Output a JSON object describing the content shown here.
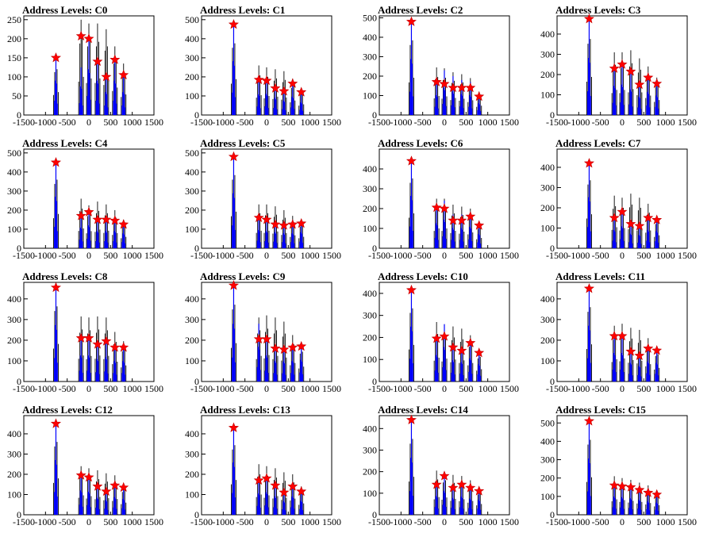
{
  "x_ticks": [
    -1500,
    -1000,
    -500,
    0,
    500,
    1000,
    1500
  ],
  "x_range": [
    -1500,
    1500
  ],
  "star_color": "#ff0000",
  "hist_color": "#0000ff",
  "chart_data": [
    {
      "type": "bar",
      "title": "Address Levels: C0",
      "ylim": [
        0,
        260
      ],
      "yticks": [
        0,
        50,
        100,
        150,
        200,
        250
      ],
      "peaks_x": [
        -760,
        -180,
        0,
        200,
        400,
        600,
        800
      ],
      "blue": [
        150,
        125,
        200,
        150,
        100,
        150,
        100
      ],
      "black": [
        150,
        250,
        240,
        240,
        225,
        180,
        135
      ],
      "stars": [
        150,
        207,
        200,
        140,
        100,
        145,
        105
      ]
    },
    {
      "type": "bar",
      "title": "Address Levels: C1",
      "ylim": [
        0,
        520
      ],
      "yticks": [
        0,
        100,
        200,
        300,
        400,
        500
      ],
      "peaks_x": [
        -760,
        -180,
        0,
        200,
        400,
        600,
        800
      ],
      "blue": [
        470,
        180,
        185,
        150,
        125,
        160,
        110
      ],
      "black": [
        470,
        260,
        250,
        240,
        230,
        190,
        140
      ],
      "stars": [
        475,
        185,
        180,
        140,
        125,
        165,
        120
      ]
    },
    {
      "type": "bar",
      "title": "Address Levels: C2",
      "ylim": [
        0,
        510
      ],
      "yticks": [
        0,
        100,
        200,
        300,
        400,
        500
      ],
      "peaks_x": [
        -760,
        -180,
        0,
        200,
        400,
        600,
        800
      ],
      "blue": [
        480,
        170,
        230,
        200,
        180,
        170,
        100
      ],
      "black": [
        480,
        245,
        240,
        220,
        210,
        190,
        120
      ],
      "stars": [
        480,
        170,
        160,
        140,
        140,
        140,
        95
      ]
    },
    {
      "type": "bar",
      "title": "Address Levels: C3",
      "ylim": [
        0,
        490
      ],
      "yticks": [
        0,
        100,
        200,
        300,
        400
      ],
      "peaks_x": [
        -760,
        -180,
        0,
        200,
        400,
        600,
        800
      ],
      "blue": [
        470,
        240,
        250,
        210,
        150,
        190,
        160
      ],
      "black": [
        470,
        310,
        310,
        320,
        280,
        240,
        185
      ],
      "stars": [
        475,
        230,
        250,
        215,
        150,
        185,
        155
      ]
    },
    {
      "type": "bar",
      "title": "Address Levels: C4",
      "ylim": [
        0,
        520
      ],
      "yticks": [
        0,
        100,
        200,
        300,
        400,
        500
      ],
      "peaks_x": [
        -760,
        -180,
        0,
        200,
        400,
        600,
        800
      ],
      "blue": [
        450,
        180,
        200,
        150,
        150,
        150,
        130
      ],
      "black": [
        450,
        260,
        225,
        245,
        230,
        200,
        150
      ],
      "stars": [
        450,
        170,
        190,
        150,
        150,
        145,
        125
      ]
    },
    {
      "type": "bar",
      "title": "Address Levels: C5",
      "ylim": [
        0,
        520
      ],
      "yticks": [
        0,
        100,
        200,
        300,
        400,
        500
      ],
      "peaks_x": [
        -760,
        -180,
        0,
        200,
        400,
        600,
        800
      ],
      "blue": [
        480,
        160,
        150,
        140,
        130,
        130,
        140
      ],
      "black": [
        480,
        230,
        230,
        220,
        200,
        170,
        150
      ],
      "stars": [
        480,
        160,
        150,
        125,
        120,
        125,
        130
      ]
    },
    {
      "type": "bar",
      "title": "Address Levels: C6",
      "ylim": [
        0,
        500
      ],
      "yticks": [
        0,
        100,
        200,
        300,
        400
      ],
      "peaks_x": [
        -760,
        -180,
        0,
        200,
        400,
        600,
        800
      ],
      "blue": [
        440,
        210,
        240,
        170,
        170,
        180,
        120
      ],
      "black": [
        440,
        250,
        250,
        220,
        210,
        200,
        130
      ],
      "stars": [
        440,
        205,
        200,
        140,
        140,
        160,
        115
      ]
    },
    {
      "type": "bar",
      "title": "Address Levels: C7",
      "ylim": [
        0,
        490
      ],
      "yticks": [
        0,
        100,
        200,
        300,
        400
      ],
      "peaks_x": [
        -760,
        -180,
        0,
        200,
        400,
        600,
        800
      ],
      "blue": [
        420,
        150,
        180,
        120,
        110,
        150,
        140
      ],
      "black": [
        420,
        260,
        250,
        270,
        250,
        220,
        160
      ],
      "stars": [
        420,
        150,
        180,
        120,
        110,
        150,
        140
      ]
    },
    {
      "type": "bar",
      "title": "Address Levels: C8",
      "ylim": [
        0,
        480
      ],
      "yticks": [
        0,
        100,
        200,
        300,
        400
      ],
      "peaks_x": [
        -760,
        -180,
        0,
        200,
        400,
        600,
        800
      ],
      "blue": [
        455,
        210,
        210,
        180,
        195,
        165,
        165
      ],
      "black": [
        455,
        315,
        310,
        315,
        310,
        240,
        195
      ],
      "stars": [
        455,
        210,
        210,
        180,
        195,
        165,
        165
      ]
    },
    {
      "type": "bar",
      "title": "Address Levels: C9",
      "ylim": [
        0,
        480
      ],
      "yticks": [
        0,
        100,
        200,
        300,
        400
      ],
      "peaks_x": [
        -760,
        -180,
        0,
        200,
        400,
        600,
        800
      ],
      "blue": [
        465,
        280,
        210,
        165,
        160,
        165,
        175
      ],
      "black": [
        465,
        310,
        320,
        310,
        290,
        225,
        180
      ],
      "stars": [
        465,
        205,
        205,
        160,
        155,
        165,
        170
      ]
    },
    {
      "type": "bar",
      "title": "Address Levels: C10",
      "ylim": [
        0,
        450
      ],
      "yticks": [
        0,
        100,
        200,
        300,
        400
      ],
      "peaks_x": [
        -760,
        -180,
        0,
        200,
        400,
        600,
        800
      ],
      "blue": [
        415,
        200,
        260,
        160,
        145,
        175,
        130
      ],
      "black": [
        415,
        270,
        260,
        250,
        240,
        210,
        140
      ],
      "stars": [
        415,
        195,
        205,
        155,
        140,
        175,
        130
      ]
    },
    {
      "type": "bar",
      "title": "Address Levels: C11",
      "ylim": [
        0,
        480
      ],
      "yticks": [
        0,
        100,
        200,
        300,
        400
      ],
      "peaks_x": [
        -760,
        -180,
        0,
        200,
        400,
        600,
        800
      ],
      "blue": [
        450,
        230,
        230,
        150,
        125,
        160,
        150
      ],
      "black": [
        450,
        270,
        280,
        260,
        250,
        210,
        165
      ],
      "stars": [
        450,
        220,
        220,
        145,
        125,
        160,
        150
      ]
    },
    {
      "type": "bar",
      "title": "Address Levels: C12",
      "ylim": [
        0,
        490
      ],
      "yticks": [
        0,
        100,
        200,
        300,
        400
      ],
      "peaks_x": [
        -760,
        -180,
        0,
        200,
        400,
        600,
        800
      ],
      "blue": [
        450,
        200,
        190,
        140,
        120,
        145,
        130
      ],
      "black": [
        450,
        240,
        230,
        220,
        205,
        195,
        150
      ],
      "stars": [
        450,
        195,
        185,
        140,
        115,
        145,
        135
      ]
    },
    {
      "type": "bar",
      "title": "Address Levels: C13",
      "ylim": [
        0,
        490
      ],
      "yticks": [
        0,
        100,
        200,
        300,
        400
      ],
      "peaks_x": [
        -760,
        -180,
        0,
        200,
        400,
        600,
        800
      ],
      "blue": [
        430,
        175,
        185,
        150,
        110,
        150,
        115
      ],
      "black": [
        430,
        250,
        240,
        230,
        210,
        200,
        140
      ],
      "stars": [
        430,
        170,
        180,
        145,
        110,
        140,
        115
      ]
    },
    {
      "type": "bar",
      "title": "Address Levels: C14",
      "ylim": [
        0,
        460
      ],
      "yticks": [
        0,
        100,
        200,
        300,
        400
      ],
      "peaks_x": [
        -760,
        -180,
        0,
        200,
        400,
        600,
        800
      ],
      "blue": [
        440,
        145,
        185,
        130,
        140,
        125,
        115
      ],
      "black": [
        440,
        205,
        200,
        185,
        180,
        160,
        125
      ],
      "stars": [
        440,
        140,
        180,
        125,
        140,
        125,
        110
      ]
    },
    {
      "type": "bar",
      "title": "Address Levels: C15",
      "ylim": [
        0,
        540
      ],
      "yticks": [
        0,
        100,
        200,
        300,
        400,
        500
      ],
      "peaks_x": [
        -760,
        -180,
        0,
        200,
        400,
        600,
        800
      ],
      "blue": [
        510,
        165,
        160,
        150,
        135,
        120,
        110
      ],
      "black": [
        510,
        210,
        200,
        190,
        175,
        160,
        130
      ],
      "stars": [
        510,
        160,
        155,
        150,
        135,
        120,
        110
      ]
    }
  ]
}
